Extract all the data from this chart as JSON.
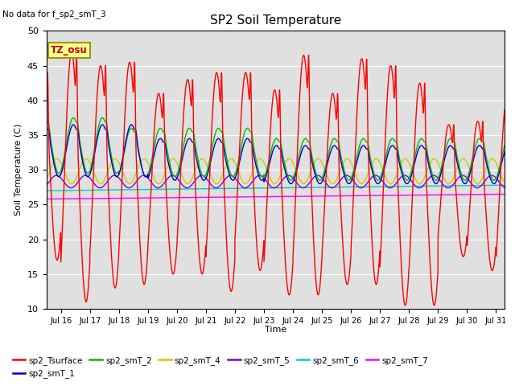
{
  "title": "SP2 Soil Temperature",
  "no_data_text": "No data for f_sp2_smT_3",
  "tz_label": "TZ_osu",
  "xlabel": "Time",
  "ylabel": "Soil Temperature (C)",
  "ylim": [
    10,
    50
  ],
  "xlim_days": [
    15.5,
    31.3
  ],
  "yticks": [
    10,
    15,
    20,
    25,
    30,
    35,
    40,
    45,
    50
  ],
  "xtick_days": [
    16,
    17,
    18,
    19,
    20,
    21,
    22,
    23,
    24,
    25,
    26,
    27,
    28,
    29,
    30,
    31
  ],
  "bg_color": "#e0e0e0",
  "colors": {
    "sp2_Tsurface": "#ff0000",
    "sp2_smT_1": "#0000cc",
    "sp2_smT_2": "#00bb00",
    "sp2_smT_4": "#cccc00",
    "sp2_smT_5": "#8800cc",
    "sp2_smT_6": "#00cccc",
    "sp2_smT_7": "#ff00ff"
  },
  "legend_order": [
    "sp2_Tsurface",
    "sp2_smT_1",
    "sp2_smT_2",
    "sp2_smT_4",
    "sp2_smT_5",
    "sp2_smT_6",
    "sp2_smT_7"
  ]
}
